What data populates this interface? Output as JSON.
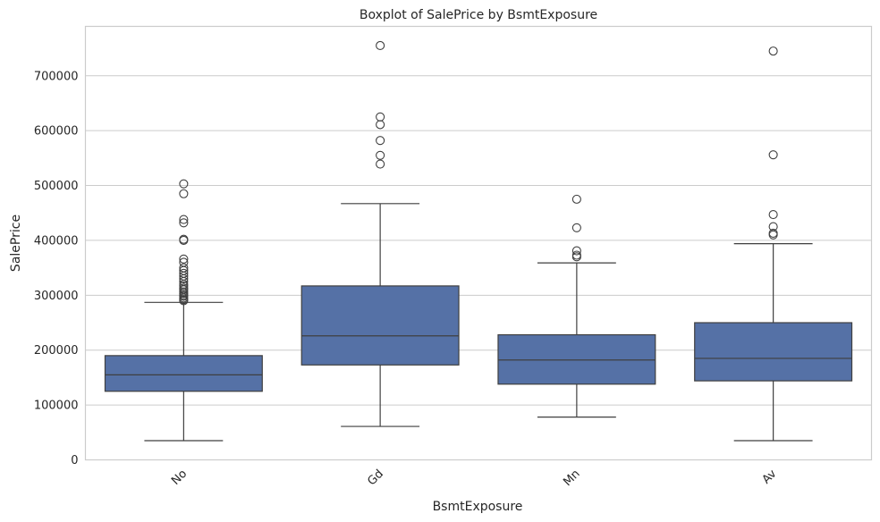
{
  "colors": {
    "box_fill": "#5571a6",
    "line": "#3f3f3f",
    "grid": "#cccccc",
    "text": "#262626"
  },
  "chart_data": {
    "type": "box",
    "title": "Boxplot of SalePrice by BsmtExposure",
    "xlabel": "BsmtExposure",
    "ylabel": "SalePrice",
    "ylim": [
      0,
      790000
    ],
    "yticks": [
      0,
      100000,
      200000,
      300000,
      400000,
      500000,
      600000,
      700000
    ],
    "ytick_labels": [
      "0",
      "100000",
      "200000",
      "300000",
      "400000",
      "500000",
      "600000",
      "700000"
    ],
    "grid": true,
    "categories": [
      "No",
      "Gd",
      "Mn",
      "Av"
    ],
    "boxes": [
      {
        "category": "No",
        "whisker_low": 35000,
        "q1": 125000,
        "median": 155000,
        "q3": 190000,
        "whisker_high": 287000,
        "outliers": [
          290000,
          292000,
          295000,
          298000,
          300000,
          303000,
          306000,
          310000,
          313000,
          317000,
          320000,
          325000,
          330000,
          335000,
          340000,
          345000,
          350000,
          360000,
          366000,
          400000,
          402000,
          432000,
          438000,
          485000,
          503000
        ]
      },
      {
        "category": "Gd",
        "whisker_low": 61000,
        "q1": 173000,
        "median": 226000,
        "q3": 317000,
        "whisker_high": 467000,
        "outliers": [
          539000,
          555000,
          582000,
          611000,
          625000,
          755000
        ]
      },
      {
        "category": "Mn",
        "whisker_low": 78000,
        "q1": 138000,
        "median": 182000,
        "q3": 228000,
        "whisker_high": 359000,
        "outliers": [
          370000,
          373000,
          381000,
          423000,
          475000
        ]
      },
      {
        "category": "Av",
        "whisker_low": 35000,
        "q1": 144000,
        "median": 185000,
        "q3": 250000,
        "whisker_high": 394000,
        "outliers": [
          410000,
          413000,
          425000,
          447000,
          556000,
          745000
        ]
      }
    ]
  }
}
